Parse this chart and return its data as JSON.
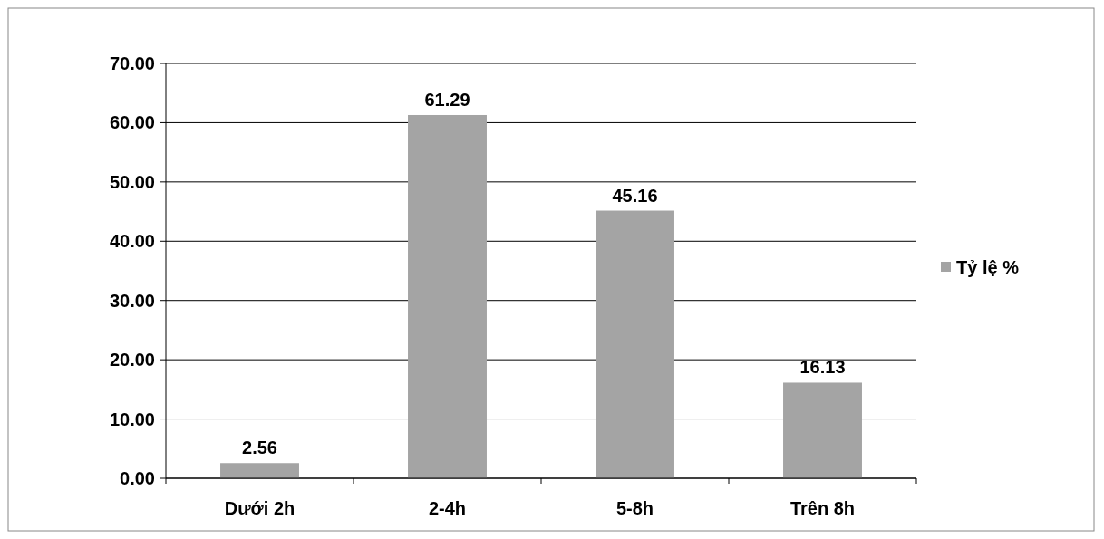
{
  "chart_data": {
    "type": "bar",
    "categories": [
      "Dưới 2h",
      "2-4h",
      "5-8h",
      "Trên 8h"
    ],
    "series": [
      {
        "name": "Tỷ lệ %",
        "color": "#a4a4a4",
        "values": [
          2.56,
          61.29,
          45.16,
          16.13
        ]
      }
    ],
    "ylim": [
      0,
      70
    ],
    "yticks": [
      {
        "value": 0,
        "label": "0.00"
      },
      {
        "value": 10,
        "label": "10.00"
      },
      {
        "value": 20,
        "label": "20.00"
      },
      {
        "value": 30,
        "label": "30.00"
      },
      {
        "value": 40,
        "label": "40.00"
      },
      {
        "value": 50,
        "label": "50.00"
      },
      {
        "value": 60,
        "label": "60.00"
      },
      {
        "value": 70,
        "label": "70.00"
      }
    ],
    "grid": "y",
    "legend": "right",
    "data_labels": true
  }
}
